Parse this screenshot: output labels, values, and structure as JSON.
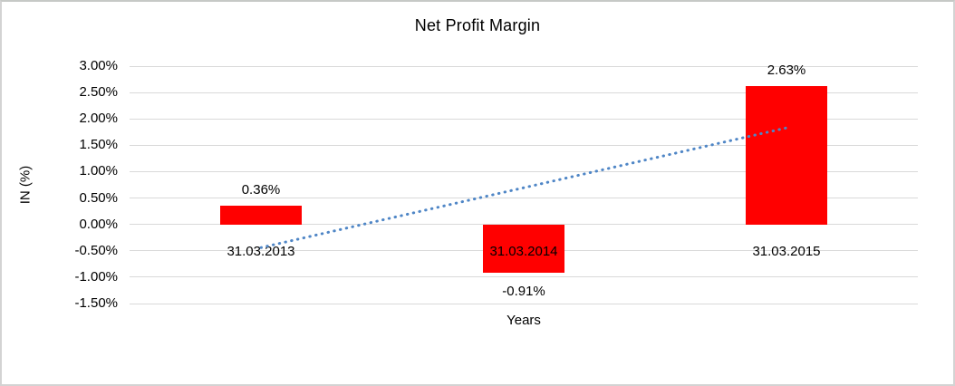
{
  "chart_data": {
    "type": "bar",
    "title": "Net Profit Margin",
    "xlabel": "Years",
    "ylabel": "IN (%)",
    "categories": [
      "31.03.2013",
      "31.03.2014",
      "31.03.2015"
    ],
    "values": [
      0.36,
      -0.91,
      2.63
    ],
    "data_labels": [
      "0.36%",
      "-0.91%",
      "2.63%"
    ],
    "yticks": [
      3.0,
      2.5,
      2.0,
      1.5,
      1.0,
      0.5,
      0.0,
      -0.5,
      -1.0,
      -1.5
    ],
    "ytick_labels": [
      "3.00%",
      "2.50%",
      "2.00%",
      "1.50%",
      "1.00%",
      "0.50%",
      "0.00%",
      "-0.50%",
      "-1.00%",
      "-1.50%"
    ],
    "ylim": [
      -1.5,
      3.0
    ],
    "grid": true,
    "legend": false,
    "bar_color": "#ff0000",
    "gridline_color": "#d9d9d9",
    "text_color": "#000000",
    "trendline": {
      "style": "dotted",
      "color": "#4f86c6",
      "start_value": -0.44,
      "end_value": 1.83
    }
  }
}
